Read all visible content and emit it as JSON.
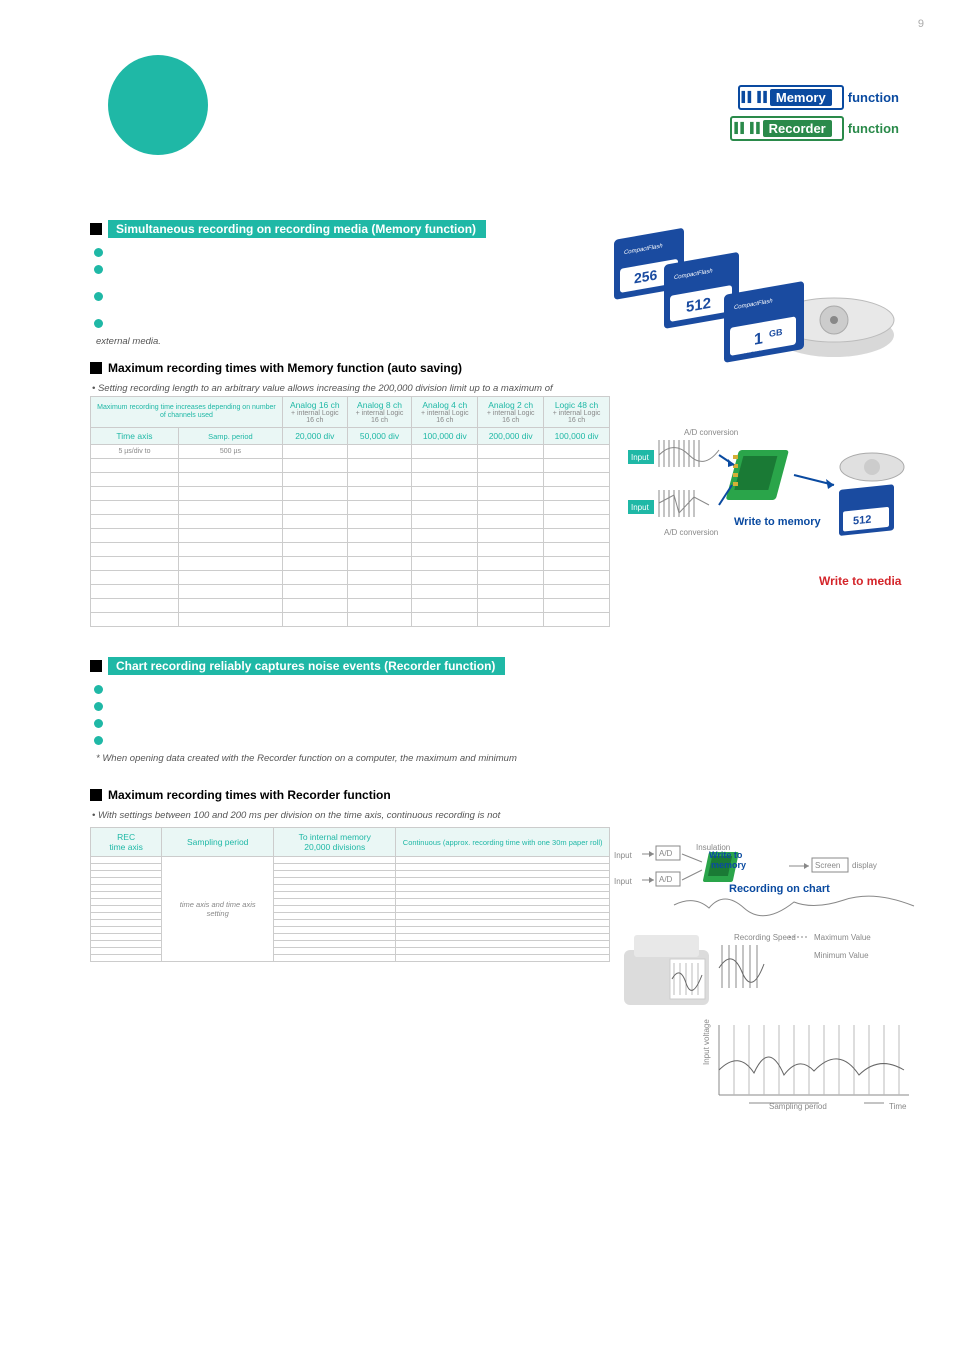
{
  "page_number": "9",
  "badges": {
    "memory": {
      "prefix": "",
      "tag": "Memory",
      "suffix": "function"
    },
    "recorder": {
      "prefix": "",
      "tag": "Recorder",
      "suffix": "function"
    }
  },
  "section1": {
    "title": "Simultaneous recording on recording media (Memory function)",
    "note_after_bullets": "external media."
  },
  "section2": {
    "title": "Maximum recording times with Memory function (auto saving)",
    "note": "Setting recording length to an arbitrary value allows increasing the 200,000 division limit up to a maximum of"
  },
  "mem_table": {
    "header_left_a": "Maximum recording time increases depending on number of channels used",
    "col_headers": [
      {
        "main": "Analog 16 ch",
        "sub": "+ internal Logic 16 ch"
      },
      {
        "main": "Analog 8 ch",
        "sub": "+ internal Logic 16 ch"
      },
      {
        "main": "Analog 4 ch",
        "sub": "+ internal Logic 16 ch"
      },
      {
        "main": "Analog 2 ch",
        "sub": "+ internal Logic 16 ch"
      },
      {
        "main": "Logic 48 ch",
        "sub": "+ internal Logic 16 ch"
      }
    ],
    "row2": {
      "c1": "Time axis",
      "c2": "Samp. period",
      "vals": [
        "20,000 div",
        "50,000 div",
        "100,000 div",
        "200,000 div",
        "100,000 div"
      ]
    },
    "row3": {
      "c1": "5 µs/div to",
      "c2": "500 µs"
    },
    "empty_rows": 12
  },
  "diag1": {
    "ad": "A/D conversion",
    "input": "Input",
    "write_mem": "Write to memory",
    "write_media": "Write to media"
  },
  "section3": {
    "title": "Chart recording reliably captures noise events (Recorder function)",
    "note": "* When opening data created with the Recorder function on a computer, the maximum and minimum"
  },
  "section4": {
    "title": "Maximum recording times with Recorder function",
    "note": "With settings between 100 and 200 ms per division on the time axis, continuous recording is not"
  },
  "rec_table": {
    "headers": [
      "REC\ntime axis",
      "Sampling period",
      "To internal memory\n20,000 divisions",
      "Continuous (approx. recording time with one 30m paper roll)"
    ],
    "merged_text": "time axis and time axis setting",
    "rows_before": 8,
    "rows_after": 6
  },
  "diag2": {
    "input": "Input",
    "ad": "A/D",
    "insul": "Insulation",
    "write_mem": "Write to\nmemory",
    "screen": "Screen",
    "display": "display",
    "rec_chart": "Recording on chart",
    "rec_speed": "Recording Speed",
    "maxv": "Maximum Value",
    "minv": "Minimum Value",
    "iv": "Input voltage",
    "sp": "Sampling period",
    "time": "Time"
  },
  "colors": {
    "teal": "#1fb8a6",
    "blue": "#0a4aa0",
    "green": "#2a8a4a",
    "gray": "#888888"
  }
}
